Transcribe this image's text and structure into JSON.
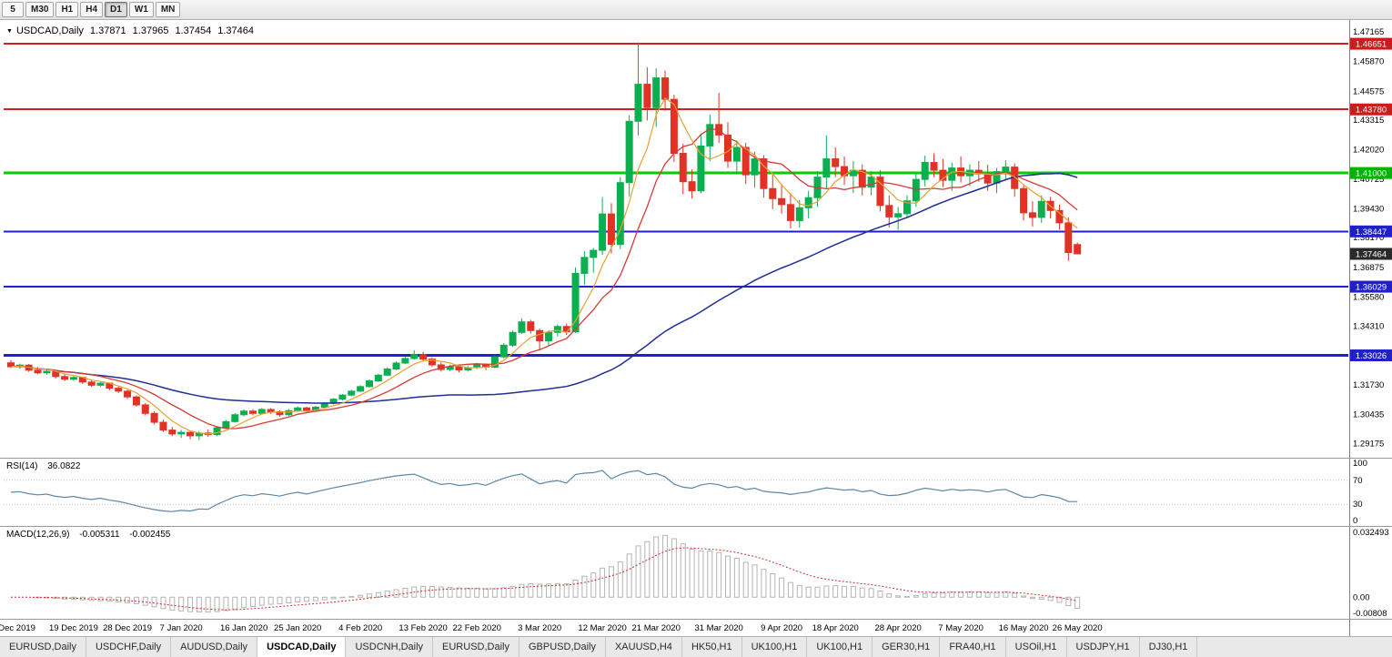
{
  "toolbar": {
    "timeframes": [
      "5",
      "M30",
      "H1",
      "H4",
      "D1",
      "W1",
      "MN"
    ],
    "active": "D1"
  },
  "chart": {
    "symbol": "USDCAD,Daily",
    "open": "1.37871",
    "high": "1.37965",
    "low": "1.37454",
    "close": "1.37464"
  },
  "chart_data": {
    "type": "candlestick",
    "symbol": "USDCAD",
    "timeframe": "Daily",
    "price_range": {
      "top": 1.4745,
      "bottom": 1.2875
    },
    "ohlc": [
      [
        1.327,
        1.3282,
        1.3248,
        1.3253
      ],
      [
        1.3253,
        1.3266,
        1.3244,
        1.326
      ],
      [
        1.326,
        1.3265,
        1.323,
        1.3238
      ],
      [
        1.3238,
        1.3252,
        1.322,
        1.3226
      ],
      [
        1.3226,
        1.324,
        1.3218,
        1.3233
      ],
      [
        1.3233,
        1.3238,
        1.3202,
        1.321
      ],
      [
        1.321,
        1.3222,
        1.319,
        1.3198
      ],
      [
        1.3198,
        1.3212,
        1.3192,
        1.3206
      ],
      [
        1.3206,
        1.321,
        1.3178,
        1.3186
      ],
      [
        1.3186,
        1.3196,
        1.3165,
        1.3172
      ],
      [
        1.3172,
        1.3186,
        1.3166,
        1.3181
      ],
      [
        1.3181,
        1.3184,
        1.315,
        1.3159
      ],
      [
        1.3159,
        1.3168,
        1.3138,
        1.3146
      ],
      [
        1.3146,
        1.3152,
        1.3112,
        1.3121
      ],
      [
        1.3121,
        1.3128,
        1.3078,
        1.3086
      ],
      [
        1.3086,
        1.3094,
        1.304,
        1.3049
      ],
      [
        1.3049,
        1.3058,
        1.3,
        1.301
      ],
      [
        1.301,
        1.3022,
        1.2968,
        1.2976
      ],
      [
        1.2976,
        1.299,
        1.295,
        1.2959
      ],
      [
        1.2959,
        1.2976,
        1.2942,
        1.2966
      ],
      [
        1.2966,
        1.2974,
        1.2936,
        1.2951
      ],
      [
        1.2951,
        1.2972,
        1.2932,
        1.2963
      ],
      [
        1.2963,
        1.2978,
        1.2946,
        1.2956
      ],
      [
        1.2956,
        1.2992,
        1.295,
        1.2986
      ],
      [
        1.2986,
        1.302,
        1.298,
        1.3013
      ],
      [
        1.3013,
        1.305,
        1.3008,
        1.3043
      ],
      [
        1.3043,
        1.3066,
        1.3036,
        1.3059
      ],
      [
        1.3059,
        1.3068,
        1.304,
        1.3049
      ],
      [
        1.3049,
        1.3072,
        1.3044,
        1.3066
      ],
      [
        1.3066,
        1.3072,
        1.3046,
        1.3056
      ],
      [
        1.3056,
        1.3062,
        1.3034,
        1.3043
      ],
      [
        1.3043,
        1.3068,
        1.3038,
        1.3061
      ],
      [
        1.3061,
        1.308,
        1.3055,
        1.3073
      ],
      [
        1.3073,
        1.3078,
        1.305,
        1.3059
      ],
      [
        1.3059,
        1.3082,
        1.3054,
        1.3076
      ],
      [
        1.3076,
        1.3098,
        1.307,
        1.3093
      ],
      [
        1.3093,
        1.3116,
        1.3088,
        1.3111
      ],
      [
        1.3111,
        1.3134,
        1.3106,
        1.3129
      ],
      [
        1.3129,
        1.3152,
        1.3124,
        1.3146
      ],
      [
        1.3146,
        1.3172,
        1.3142,
        1.3166
      ],
      [
        1.3166,
        1.3198,
        1.3162,
        1.3191
      ],
      [
        1.3191,
        1.3222,
        1.3186,
        1.3216
      ],
      [
        1.3216,
        1.325,
        1.3212,
        1.3243
      ],
      [
        1.3243,
        1.3276,
        1.3238,
        1.3269
      ],
      [
        1.3269,
        1.3296,
        1.3264,
        1.3289
      ],
      [
        1.3289,
        1.3325,
        1.3284,
        1.3306
      ],
      [
        1.3306,
        1.3318,
        1.3278,
        1.3286
      ],
      [
        1.3286,
        1.3294,
        1.3252,
        1.3261
      ],
      [
        1.3261,
        1.3272,
        1.3232,
        1.3241
      ],
      [
        1.3241,
        1.3262,
        1.3234,
        1.3253
      ],
      [
        1.3253,
        1.326,
        1.3228,
        1.3239
      ],
      [
        1.3239,
        1.3258,
        1.3232,
        1.3249
      ],
      [
        1.3249,
        1.327,
        1.3243,
        1.3263
      ],
      [
        1.3263,
        1.3268,
        1.3238,
        1.3251
      ],
      [
        1.3251,
        1.3302,
        1.3246,
        1.3296
      ],
      [
        1.3296,
        1.3356,
        1.329,
        1.3347
      ],
      [
        1.3347,
        1.3412,
        1.334,
        1.3403
      ],
      [
        1.3403,
        1.3465,
        1.3396,
        1.3449
      ],
      [
        1.3449,
        1.3458,
        1.3398,
        1.3411
      ],
      [
        1.3411,
        1.342,
        1.3324,
        1.3366
      ],
      [
        1.3366,
        1.3412,
        1.3344,
        1.3403
      ],
      [
        1.3403,
        1.3438,
        1.3386,
        1.3429
      ],
      [
        1.3429,
        1.3442,
        1.3392,
        1.3406
      ],
      [
        1.3406,
        1.3688,
        1.34,
        1.3661
      ],
      [
        1.3661,
        1.3758,
        1.3612,
        1.3731
      ],
      [
        1.3731,
        1.3772,
        1.3664,
        1.3762
      ],
      [
        1.3762,
        1.3995,
        1.3742,
        1.3921
      ],
      [
        1.3921,
        1.3968,
        1.3748,
        1.3788
      ],
      [
        1.3788,
        1.4082,
        1.3768,
        1.4058
      ],
      [
        1.4058,
        1.4352,
        1.3998,
        1.4326
      ],
      [
        1.4326,
        1.467,
        1.4264,
        1.4488
      ],
      [
        1.4488,
        1.4562,
        1.433,
        1.4386
      ],
      [
        1.4386,
        1.4558,
        1.4302,
        1.4516
      ],
      [
        1.4516,
        1.4548,
        1.4372,
        1.4422
      ],
      [
        1.4422,
        1.4442,
        1.4148,
        1.4186
      ],
      [
        1.4186,
        1.4228,
        1.4008,
        1.4062
      ],
      [
        1.4062,
        1.4116,
        1.3988,
        1.4022
      ],
      [
        1.4022,
        1.4272,
        1.4012,
        1.4218
      ],
      [
        1.4218,
        1.4356,
        1.4152,
        1.4312
      ],
      [
        1.4312,
        1.445,
        1.4232,
        1.4266
      ],
      [
        1.4266,
        1.4322,
        1.4122,
        1.4152
      ],
      [
        1.4152,
        1.4242,
        1.4094,
        1.4212
      ],
      [
        1.4212,
        1.4232,
        1.4052,
        1.4092
      ],
      [
        1.4092,
        1.4192,
        1.4036,
        1.4162
      ],
      [
        1.4162,
        1.4178,
        1.3992,
        1.4032
      ],
      [
        1.4032,
        1.4092,
        1.3942,
        1.3988
      ],
      [
        1.3988,
        1.4052,
        1.3922,
        1.3962
      ],
      [
        1.3962,
        1.4012,
        1.3858,
        1.3892
      ],
      [
        1.3892,
        1.3982,
        1.3862,
        1.3948
      ],
      [
        1.3948,
        1.4022,
        1.3902,
        1.3992
      ],
      [
        1.3992,
        1.4108,
        1.3952,
        1.4082
      ],
      [
        1.4082,
        1.4265,
        1.4032,
        1.4162
      ],
      [
        1.4162,
        1.4212,
        1.4082,
        1.4128
      ],
      [
        1.4128,
        1.4172,
        1.4048,
        1.4088
      ],
      [
        1.4088,
        1.4152,
        1.4012,
        1.4112
      ],
      [
        1.4112,
        1.4138,
        1.4002,
        1.4038
      ],
      [
        1.4038,
        1.4108,
        1.4002,
        1.4082
      ],
      [
        1.4082,
        1.4112,
        1.3932,
        1.3958
      ],
      [
        1.3958,
        1.4002,
        1.3862,
        1.3908
      ],
      [
        1.3908,
        1.3952,
        1.3852,
        1.3922
      ],
      [
        1.3922,
        1.4002,
        1.3902,
        1.3978
      ],
      [
        1.3978,
        1.4102,
        1.3952,
        1.4072
      ],
      [
        1.4072,
        1.4176,
        1.4042,
        1.4146
      ],
      [
        1.4146,
        1.4186,
        1.4082,
        1.4112
      ],
      [
        1.4112,
        1.4162,
        1.4038,
        1.4068
      ],
      [
        1.4068,
        1.4146,
        1.4022,
        1.4122
      ],
      [
        1.4122,
        1.4172,
        1.4058,
        1.4088
      ],
      [
        1.4088,
        1.4138,
        1.4042,
        1.4112
      ],
      [
        1.4112,
        1.4152,
        1.4062,
        1.4096
      ],
      [
        1.4096,
        1.4136,
        1.4022,
        1.4056
      ],
      [
        1.4056,
        1.4122,
        1.4012,
        1.4106
      ],
      [
        1.4106,
        1.4156,
        1.4066,
        1.4126
      ],
      [
        1.4126,
        1.4142,
        1.3996,
        1.4032
      ],
      [
        1.4032,
        1.4046,
        1.3892,
        1.3926
      ],
      [
        1.3926,
        1.3976,
        1.3866,
        1.3906
      ],
      [
        1.3906,
        1.4002,
        1.3882,
        1.3976
      ],
      [
        1.3976,
        1.3996,
        1.3902,
        1.3936
      ],
      [
        1.3936,
        1.3962,
        1.3852,
        1.3882
      ],
      [
        1.3882,
        1.3906,
        1.3716,
        1.3752
      ],
      [
        1.37871,
        1.37965,
        1.37454,
        1.37464
      ]
    ],
    "date_labels": [
      [
        "10 Dec 2019",
        0
      ],
      [
        "19 Dec 2019",
        7
      ],
      [
        "28 Dec 2019",
        13
      ],
      [
        "7 Jan 2020",
        19
      ],
      [
        "16 Jan 2020",
        26
      ],
      [
        "25 Jan 2020",
        32
      ],
      [
        "4 Feb 2020",
        39
      ],
      [
        "13 Feb 2020",
        46
      ],
      [
        "22 Feb 2020",
        52
      ],
      [
        "3 Mar 2020",
        59
      ],
      [
        "12 Mar 2020",
        66
      ],
      [
        "21 Mar 2020",
        72
      ],
      [
        "31 Mar 2020",
        79
      ],
      [
        "9 Apr 2020",
        86
      ],
      [
        "18 Apr 2020",
        92
      ],
      [
        "28 Apr 2020",
        99
      ],
      [
        "7 May 2020",
        106
      ],
      [
        "16 May 2020",
        113
      ],
      [
        "26 May 2020",
        119
      ]
    ],
    "moving_averages": [
      {
        "name": "ma-slow",
        "period": 50,
        "color": "#202e96",
        "width": 1.5
      },
      {
        "name": "ma-mid",
        "period": 10,
        "color": "#d43a36",
        "width": 1.3
      },
      {
        "name": "ma-fast",
        "period": 5,
        "color": "#e8a030",
        "width": 1.2
      }
    ]
  },
  "price_scale": {
    "labels": [
      "1.47165",
      "1.45870",
      "1.44575",
      "1.43315",
      "1.42020",
      "1.40725",
      "1.39430",
      "1.38170",
      "1.36875",
      "1.35580",
      "1.34310",
      "1.33015",
      "1.31730",
      "1.30435",
      "1.29175"
    ],
    "badges": [
      {
        "text": "1.46651",
        "value": 1.46651,
        "color": "#c81e1e",
        "current": false
      },
      {
        "text": "1.43780",
        "value": 1.4378,
        "color": "#c81e1e",
        "current": false
      },
      {
        "text": "1.41000",
        "value": 1.41,
        "color": "#00b400",
        "current": false
      },
      {
        "text": "1.38447",
        "value": 1.38447,
        "color": "#2020c8",
        "current": false
      },
      {
        "text": "1.37464",
        "value": 1.37464,
        "color": "#2a2a2a",
        "current": true
      },
      {
        "text": "1.36029",
        "value": 1.36029,
        "color": "#2020c8",
        "current": false
      },
      {
        "text": "1.33026",
        "value": 1.33026,
        "color": "#2020c8",
        "current": false
      }
    ]
  },
  "hlines": [
    {
      "value": 1.46651,
      "color": "#d02020",
      "width": 2
    },
    {
      "value": 1.4378,
      "color": "#d02020",
      "width": 2
    },
    {
      "value": 1.41,
      "color": "#00cc00",
      "width": 3
    },
    {
      "value": 1.38447,
      "color": "#2020cc",
      "width": 2
    },
    {
      "value": 1.36029,
      "color": "#2020cc",
      "width": 2
    },
    {
      "value": 1.33026,
      "color": "#2020cc",
      "width": 3
    }
  ],
  "rsi": {
    "label": "RSI(14)",
    "value": "36.0822",
    "period": 14,
    "levels": [
      "100",
      "70",
      "30",
      "0"
    ],
    "line_color": "#5c87a6"
  },
  "macd": {
    "label": "MACD(12,26,9)",
    "value_main": "-0.005311",
    "value_signal": "-0.002455",
    "scale": [
      "0.032493",
      "0.00",
      "-0.00808"
    ],
    "range": {
      "top": 0.032493,
      "bottom": -0.00808
    },
    "hist_color": "#b4b4b4",
    "signal_color": "#cf2e2e"
  },
  "tabs": {
    "items": [
      "EURUSD,Daily",
      "USDCHF,Daily",
      "AUDUSD,Daily",
      "USDCAD,Daily",
      "USDCNH,Daily",
      "EURUSD,Daily",
      "GBPUSD,Daily",
      "XAUUSD,H4",
      "HK50,H1",
      "UK100,H1",
      "UK100,H1",
      "GER30,H1",
      "FRA40,H1",
      "USOil,H1",
      "USDJPY,H1",
      "DJ30,H1"
    ],
    "active_index": 3
  },
  "colors": {
    "up": "#0caf50",
    "down": "#e23226",
    "background": "#ffffff",
    "axis_separator": "#808080",
    "scale_text": "#000000"
  }
}
